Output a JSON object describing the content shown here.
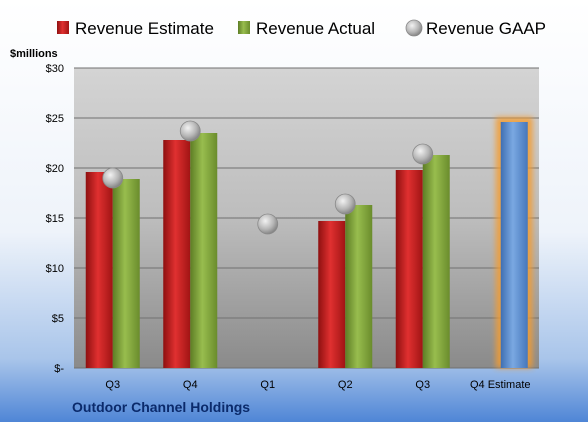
{
  "chart_data": {
    "type": "bar",
    "title": "",
    "company": "Outdoor Channel Holdings",
    "ylabel": "$millions",
    "ylim": [
      0,
      30
    ],
    "yticks": [
      {
        "value": 0,
        "label": "$-"
      },
      {
        "value": 5,
        "label": "$5"
      },
      {
        "value": 10,
        "label": "$10"
      },
      {
        "value": 15,
        "label": "$15"
      },
      {
        "value": 20,
        "label": "$20"
      },
      {
        "value": 25,
        "label": "$25"
      },
      {
        "value": 30,
        "label": "$30"
      }
    ],
    "categories": [
      "Q3",
      "Q4",
      "Q1",
      "Q2",
      "Q3",
      "Q4 Estimate"
    ],
    "legend_position": "top",
    "grid": true,
    "series": [
      {
        "name": "Revenue Estimate",
        "kind": "bar",
        "color": "#d42020",
        "values": [
          19.6,
          22.8,
          null,
          14.7,
          19.8,
          null
        ]
      },
      {
        "name": "Revenue Actual",
        "kind": "bar",
        "color": "#7fa437",
        "values": [
          18.9,
          23.5,
          null,
          16.3,
          21.3,
          null
        ]
      },
      {
        "name": "Revenue GAAP",
        "kind": "marker",
        "color": "#b8b8b8",
        "values": [
          19.0,
          23.7,
          14.4,
          16.4,
          21.4,
          null
        ]
      },
      {
        "name": "Q4 Estimate",
        "kind": "highlight-bar",
        "color": "#5b8fd0",
        "glow": "#f39c32",
        "values": [
          null,
          null,
          null,
          null,
          null,
          24.6
        ]
      }
    ]
  }
}
